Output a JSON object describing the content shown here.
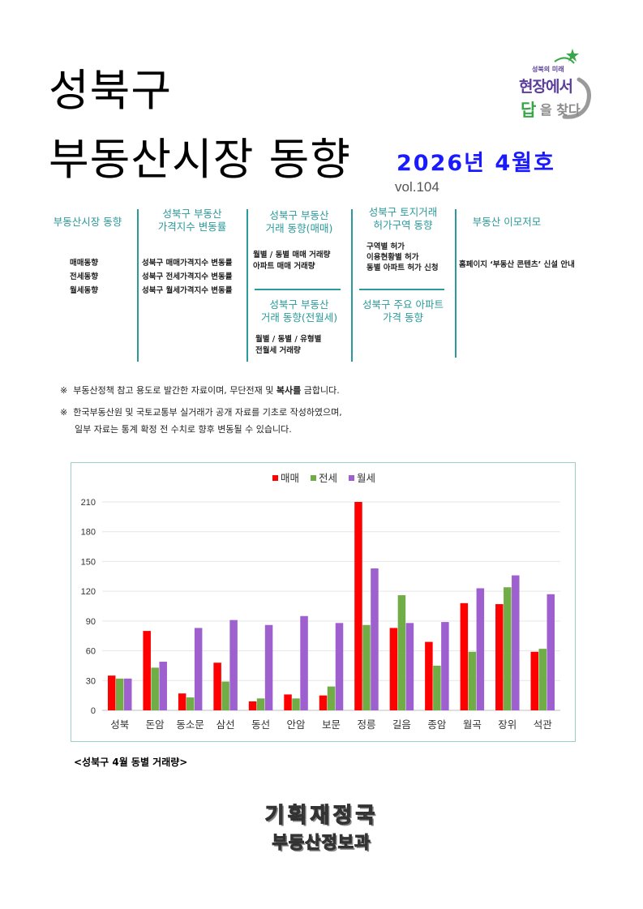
{
  "header": {
    "title_line1": "성북구",
    "title_line2": "부동산시장 동향",
    "issue": "2026년 4월호",
    "volume": "vol.104"
  },
  "logo": {
    "small": "성북의 미래",
    "line1": "현장에서",
    "line2_a": "답",
    "line2_b": "을 찾다",
    "colors": {
      "purple": "#5b3d9c",
      "green": "#3aa64a",
      "gray": "#8a8a8a"
    }
  },
  "toc": {
    "col1": {
      "head": "부동산시장 동향",
      "items": [
        "매매동향",
        "전세동향",
        "월세동향"
      ]
    },
    "col2": {
      "head": "성북구 부동산 가격지수 변동률",
      "head_l1": "성북구 부동산",
      "head_l2": "가격지수 변동률",
      "items": [
        "성북구 매매가격지수 변동률",
        "성북구 전세가격지수 변동률",
        "성북구 월세가격지수 변동률"
      ]
    },
    "col3a": {
      "head_l1": "성북구 부동산",
      "head_l2": "거래 동향(매매)",
      "items": [
        "월별 / 동별 매매 거래량",
        "아파트 매매 거래량"
      ]
    },
    "col3b": {
      "head_l1": "성북구 부동산",
      "head_l2": "거래 동향(전월세)",
      "items": [
        "월별 / 동별 / 유형별",
        "전월세 거래량"
      ]
    },
    "col4a": {
      "head_l1": "성북구 토지거래",
      "head_l2": "허가구역 동향",
      "items": [
        "구역별 허가",
        "이용현황별 허가",
        "동별 아파트 허가 신청"
      ]
    },
    "col4b": {
      "head_l1": "성북구 주요 아파트",
      "head_l2": "가격 동향"
    },
    "col5": {
      "head": "부동산 이모저모",
      "items": [
        "홈페이지 ‘부동산 콘텐츠’ 신설 안내"
      ]
    },
    "accent": "#2a9a9a"
  },
  "notes": {
    "mark": "※",
    "n1_pre": "부동산정책 참고 용도로 발간한 자료이며, 무단전재 및 ",
    "n1_bold": "복사를",
    "n1_post": " 금합니다.",
    "n2_l1": "한국부동산원 및 국토교통부 실거래가 공개 자료를 기초로 작성하였으며,",
    "n2_l2": "일부 자료는 통계 확정 전 수치로 향후 변동될 수 있습니다."
  },
  "chart_data": {
    "type": "bar",
    "categories": [
      "성북",
      "돈암",
      "동소문",
      "삼선",
      "동선",
      "안암",
      "보문",
      "정릉",
      "길음",
      "종암",
      "월곡",
      "장위",
      "석관"
    ],
    "series": [
      {
        "name": "매매",
        "color": "#ff0000",
        "values": [
          35,
          80,
          17,
          48,
          9,
          16,
          15,
          210,
          83,
          69,
          108,
          107,
          59
        ]
      },
      {
        "name": "전세",
        "color": "#70ad47",
        "values": [
          32,
          43,
          13,
          29,
          12,
          12,
          24,
          86,
          116,
          45,
          59,
          124,
          62
        ]
      },
      {
        "name": "월세",
        "color": "#9e5fcf",
        "values": [
          32,
          49,
          83,
          91,
          86,
          95,
          88,
          143,
          88,
          89,
          123,
          136,
          117
        ]
      }
    ],
    "yticks": [
      0,
      30,
      60,
      90,
      120,
      150,
      180,
      210
    ],
    "ylim": [
      0,
      210
    ],
    "legend": "top-center",
    "grid": true,
    "caption": "<성북구 4월 동별 거래량>"
  },
  "footer": {
    "org1": "기획재정국",
    "org2": "부동산정보과"
  }
}
